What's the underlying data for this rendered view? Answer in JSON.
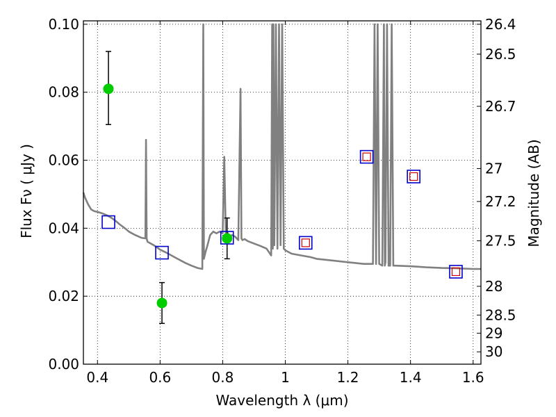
{
  "chart_data": {
    "type": "scatter",
    "xlabel": "Wavelength  λ (μm)",
    "ylabel": "Flux  Fν  ( μJy )",
    "y2label": "Magnitude (AB)",
    "xlim": [
      0.355,
      1.625
    ],
    "ylim": [
      0.0,
      0.101
    ],
    "grid": true,
    "grid_style": "dotted",
    "x_ticks": [
      0.4,
      0.6,
      0.8,
      1.0,
      1.2,
      1.4,
      1.6
    ],
    "x_tick_labels": [
      "0.4",
      "0.6",
      "0.8",
      "1",
      "1.2",
      "1.4",
      "1.6"
    ],
    "y_ticks": [
      0.0,
      0.02,
      0.04,
      0.06,
      0.08,
      0.1
    ],
    "y_tick_labels": [
      "0.00",
      "0.02",
      "0.04",
      "0.06",
      "0.08",
      "0.10"
    ],
    "y2_tick_labels": [
      "26.4",
      "26.5",
      "26.7",
      "27",
      "27.2",
      "27.5",
      "28",
      "28.5",
      "29",
      "30"
    ],
    "y2_tick_mags": [
      26.4,
      26.5,
      26.7,
      27.0,
      27.2,
      27.5,
      28.0,
      28.5,
      29.0,
      30.0
    ],
    "colors": {
      "model": "#808080",
      "observed": "#00cc00",
      "model_box": "#0000cc",
      "model_box_inner": "#cc0000",
      "errorbar": "#000000"
    },
    "model_spectrum": {
      "x": [
        0.355,
        0.36,
        0.37,
        0.38,
        0.39,
        0.4,
        0.41,
        0.42,
        0.43,
        0.44,
        0.45,
        0.46,
        0.47,
        0.48,
        0.49,
        0.5,
        0.52,
        0.54,
        0.553,
        0.555,
        0.557,
        0.56,
        0.58,
        0.6,
        0.62,
        0.64,
        0.66,
        0.68,
        0.7,
        0.72,
        0.735,
        0.738,
        0.74,
        0.745,
        0.75,
        0.76,
        0.77,
        0.78,
        0.79,
        0.8,
        0.805,
        0.81,
        0.815,
        0.82,
        0.83,
        0.84,
        0.85,
        0.857,
        0.86,
        0.863,
        0.87,
        0.88,
        0.9,
        0.92,
        0.94,
        0.955,
        0.958,
        0.96,
        0.962,
        0.965,
        0.97,
        0.975,
        0.98,
        0.985,
        0.99,
        0.995,
        1.0,
        1.02,
        1.05,
        1.08,
        1.1,
        1.15,
        1.2,
        1.25,
        1.28,
        1.285,
        1.29,
        1.295,
        1.3,
        1.31,
        1.315,
        1.318,
        1.32,
        1.325,
        1.33,
        1.335,
        1.34,
        1.345,
        1.35,
        1.4,
        1.45,
        1.5,
        1.55,
        1.6,
        1.625
      ],
      "y": [
        0.0505,
        0.049,
        0.047,
        0.0455,
        0.045,
        0.0448,
        0.0445,
        0.0442,
        0.0438,
        0.0433,
        0.0427,
        0.042,
        0.0412,
        0.0405,
        0.0398,
        0.039,
        0.038,
        0.0372,
        0.037,
        0.066,
        0.037,
        0.036,
        0.035,
        0.0337,
        0.0328,
        0.0318,
        0.0308,
        0.0298,
        0.029,
        0.0283,
        0.028,
        0.1,
        0.031,
        0.033,
        0.0345,
        0.038,
        0.039,
        0.0385,
        0.039,
        0.0385,
        0.061,
        0.038,
        0.039,
        0.037,
        0.038,
        0.0375,
        0.0365,
        0.081,
        0.037,
        0.0365,
        0.0368,
        0.0362,
        0.0355,
        0.0348,
        0.034,
        0.032,
        0.1,
        0.034,
        0.1,
        0.035,
        0.1,
        0.034,
        0.1,
        0.035,
        0.1,
        0.034,
        0.0335,
        0.0325,
        0.032,
        0.0315,
        0.031,
        0.0305,
        0.03,
        0.0295,
        0.0295,
        0.1,
        0.0295,
        0.1,
        0.0295,
        0.029,
        0.1,
        0.029,
        0.03,
        0.1,
        0.029,
        0.029,
        0.1,
        0.029,
        0.029,
        0.0288,
        0.0285,
        0.0283,
        0.0282,
        0.028,
        0.028
      ]
    },
    "observed": [
      {
        "x": 0.435,
        "y": 0.081,
        "yerr_low": 0.0705,
        "yerr_high": 0.092
      },
      {
        "x": 0.606,
        "y": 0.018,
        "yerr_low": 0.012,
        "yerr_high": 0.024
      },
      {
        "x": 0.814,
        "y": 0.037,
        "yerr_low": 0.031,
        "yerr_high": 0.043
      }
    ],
    "model_photometry": [
      {
        "x": 0.435,
        "y": 0.0418,
        "inner": false
      },
      {
        "x": 0.606,
        "y": 0.0328,
        "inner": false
      },
      {
        "x": 0.814,
        "y": 0.0372,
        "inner": false
      },
      {
        "x": 1.065,
        "y": 0.0357,
        "inner": true
      },
      {
        "x": 1.26,
        "y": 0.061,
        "inner": true
      },
      {
        "x": 1.41,
        "y": 0.0552,
        "inner": true
      },
      {
        "x": 1.545,
        "y": 0.0272,
        "inner": true
      }
    ]
  }
}
